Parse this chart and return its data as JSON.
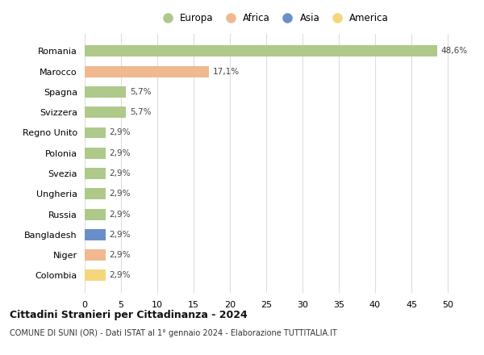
{
  "countries": [
    "Romania",
    "Marocco",
    "Spagna",
    "Svizzera",
    "Regno Unito",
    "Polonia",
    "Svezia",
    "Ungheria",
    "Russia",
    "Bangladesh",
    "Niger",
    "Colombia"
  ],
  "values": [
    48.6,
    17.1,
    5.7,
    5.7,
    2.9,
    2.9,
    2.9,
    2.9,
    2.9,
    2.9,
    2.9,
    2.9
  ],
  "labels": [
    "48,6%",
    "17,1%",
    "5,7%",
    "5,7%",
    "2,9%",
    "2,9%",
    "2,9%",
    "2,9%",
    "2,9%",
    "2,9%",
    "2,9%",
    "2,9%"
  ],
  "colors": [
    "#aec98a",
    "#f0b990",
    "#aec98a",
    "#aec98a",
    "#aec98a",
    "#aec98a",
    "#aec98a",
    "#aec98a",
    "#aec98a",
    "#6a8fc8",
    "#f0b990",
    "#f5d67a"
  ],
  "legend_labels": [
    "Europa",
    "Africa",
    "Asia",
    "America"
  ],
  "legend_colors": [
    "#aec98a",
    "#f0b990",
    "#6a8fc8",
    "#f5d67a"
  ],
  "title": "Cittadini Stranieri per Cittadinanza - 2024",
  "subtitle": "COMUNE DI SUNI (OR) - Dati ISTAT al 1° gennaio 2024 - Elaborazione TUTTITALIA.IT",
  "xlim": [
    0,
    52
  ],
  "xticks": [
    0,
    5,
    10,
    15,
    20,
    25,
    30,
    35,
    40,
    45,
    50
  ],
  "background_color": "#ffffff",
  "grid_color": "#dddddd",
  "bar_height": 0.55
}
